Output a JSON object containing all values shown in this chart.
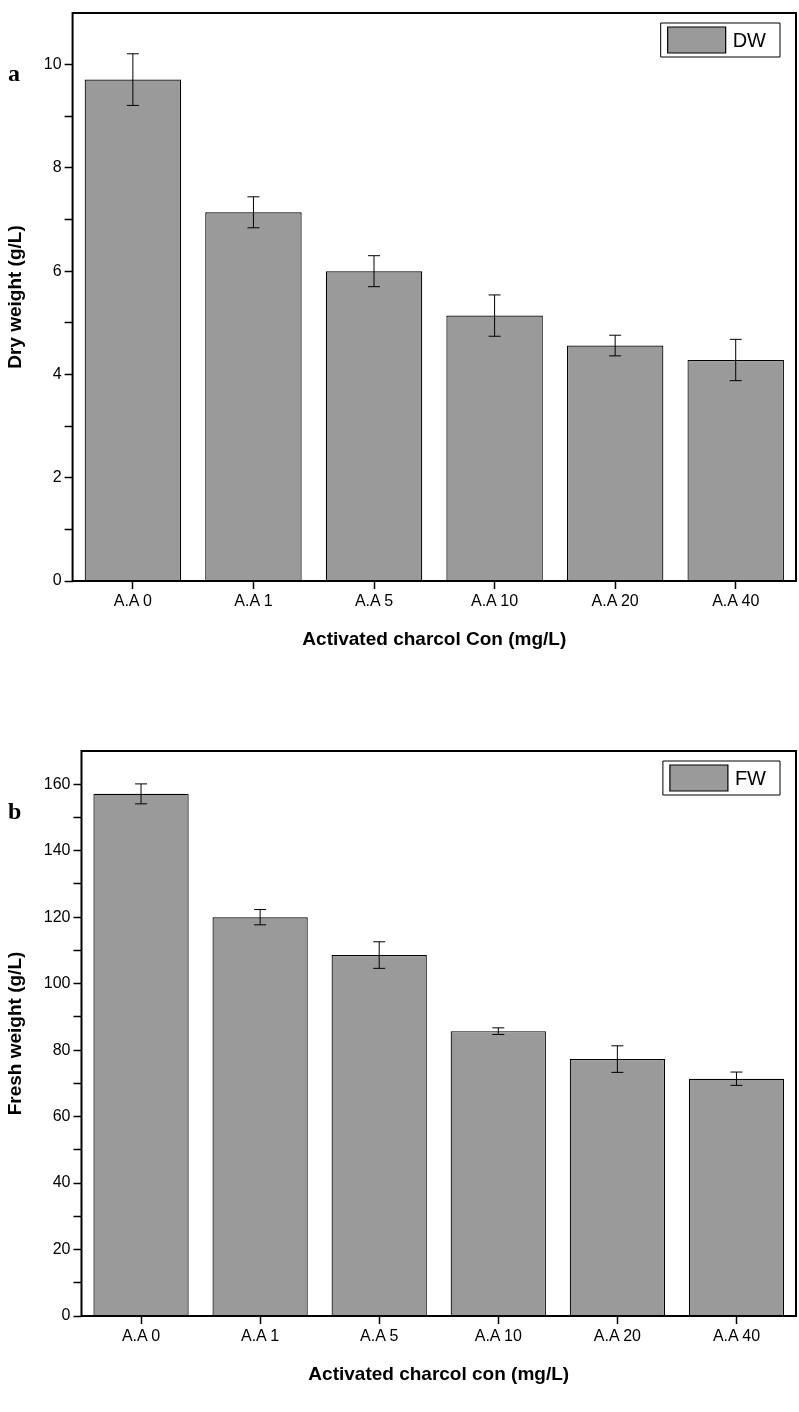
{
  "chart_data": [
    {
      "type": "bar",
      "categories": [
        "A.A 0",
        "A.A 1",
        "A.A 5",
        "A.A 10",
        "A.A 20",
        "A.A 40"
      ],
      "series": [
        {
          "name": "DW",
          "color": "#9a9a9a",
          "values": [
            9.71,
            7.14,
            6.0,
            5.14,
            4.56,
            4.28
          ],
          "errors": [
            0.5,
            0.3,
            0.3,
            0.4,
            0.2,
            0.4
          ]
        }
      ],
      "xlabel": "Activated charcol Con (mg/L)",
      "ylabel": "Dry weight (g/L)",
      "annotations": [
        "a"
      ],
      "legend": "top right",
      "ylim": [
        0,
        11
      ],
      "yticks": [
        0,
        {
          "value": 1,
          "label": null
        },
        2,
        {
          "value": 3,
          "label": null
        },
        4,
        {
          "value": 5,
          "label": null
        },
        6,
        {
          "value": 7,
          "label": null
        },
        8,
        {
          "value": 9,
          "label": null
        },
        10
      ]
    },
    {
      "type": "bar",
      "categories": [
        "A.A 0",
        "A.A 1",
        "A.A 5",
        "A.A 10",
        "A.A 20",
        "A.A 40"
      ],
      "series": [
        {
          "name": "FW",
          "color": "#9a9a9a",
          "values": [
            157.1,
            120.0,
            108.6,
            85.7,
            77.3,
            71.4
          ],
          "errors": [
            3,
            2.3,
            4,
            1,
            4,
            2
          ]
        }
      ],
      "xlabel": "Activated charcol con (mg/L)",
      "ylabel": "Fresh weight (g/L)",
      "annotations": [
        "b"
      ],
      "legend": "top right",
      "ylim": [
        0,
        170
      ],
      "yticks": [
        0,
        {
          "value": 10,
          "label": null
        },
        20,
        {
          "value": 30,
          "label": null
        },
        40,
        {
          "value": 50,
          "label": null
        },
        60,
        {
          "value": 70,
          "label": null
        },
        80,
        {
          "value": 90,
          "label": null
        },
        100,
        {
          "value": 110,
          "label": null
        },
        120,
        {
          "value": 130,
          "label": null
        },
        140,
        {
          "value": 150,
          "label": null
        },
        160
      ]
    }
  ]
}
